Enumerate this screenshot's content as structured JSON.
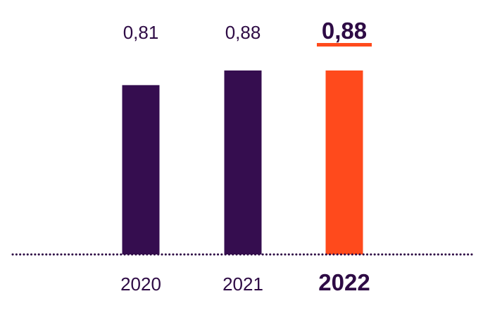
{
  "chart_data": {
    "type": "bar",
    "categories": [
      "2020",
      "2021",
      "2022"
    ],
    "values": [
      0.81,
      0.88,
      0.88
    ],
    "value_labels": [
      "0,81",
      "0,88",
      "0,88"
    ],
    "highlight_index": 2,
    "ylim": [
      0,
      0.88
    ],
    "grid": false,
    "colors": {
      "bar": "#350D4F",
      "highlight_bar": "#FF4A1C",
      "text": "#2E0B45",
      "baseline": "#2E0B45",
      "highlight_underline": "#FF4A1C"
    }
  }
}
